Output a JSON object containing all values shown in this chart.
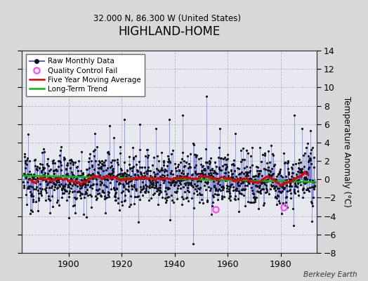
{
  "title": "HIGHLAND-HOME",
  "subtitle": "32.000 N, 86.300 W (United States)",
  "ylabel": "Temperature Anomaly (°C)",
  "credit": "Berkeley Earth",
  "year_start": 1883,
  "year_end": 1993,
  "ylim": [
    -8,
    14
  ],
  "yticks": [
    -8,
    -6,
    -4,
    -2,
    0,
    2,
    4,
    6,
    8,
    10,
    12,
    14
  ],
  "xticks": [
    1900,
    1920,
    1940,
    1960,
    1980
  ],
  "bg_color": "#d8d8d8",
  "plot_bg_color": "#e8e8f0",
  "raw_line_color": "#5566dd",
  "raw_marker_color": "#111111",
  "moving_avg_color": "#dd0000",
  "trend_color": "#00bb00",
  "qc_fail_color": "#ff44ff",
  "seed": 12345
}
